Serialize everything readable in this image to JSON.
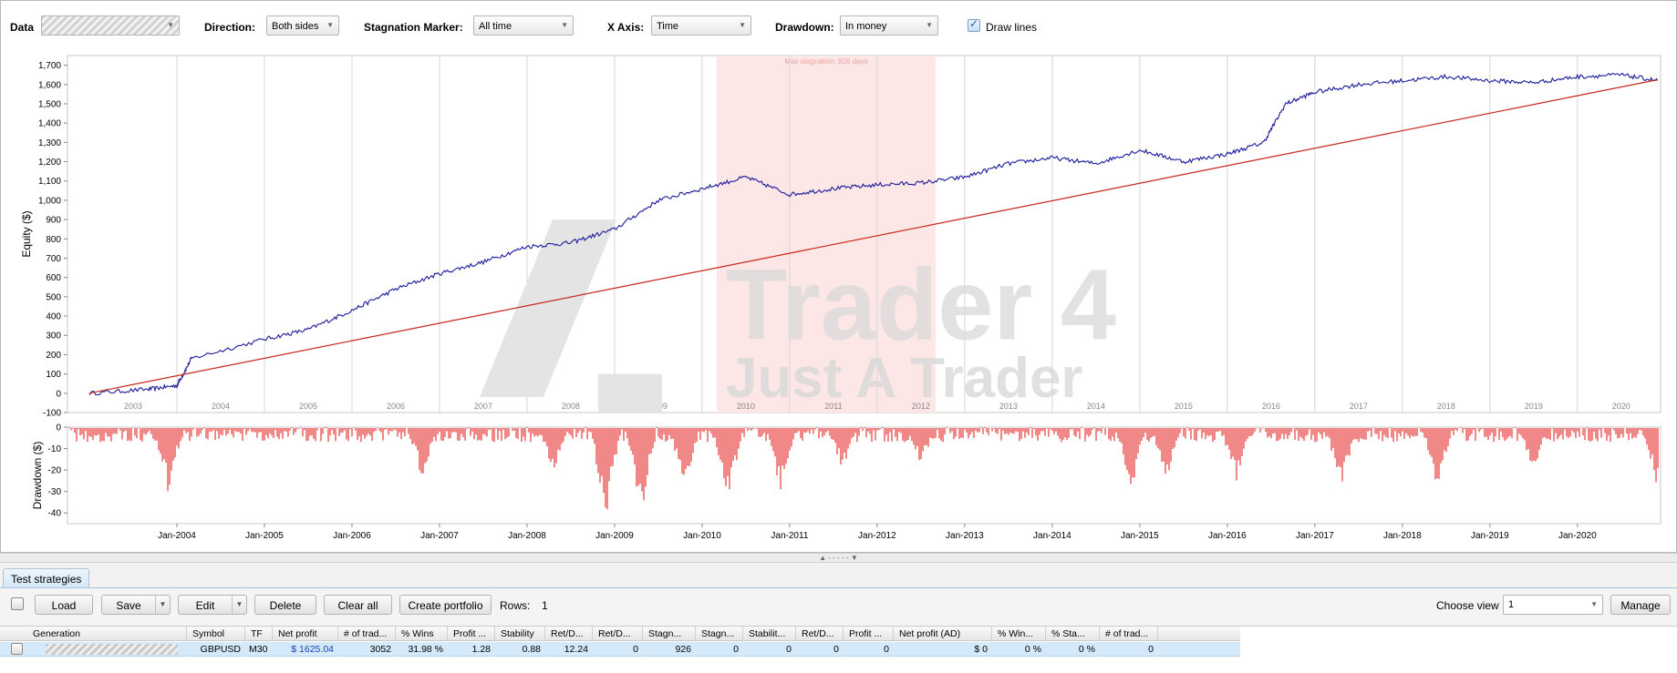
{
  "toolbar": {
    "data_label": "Data",
    "direction_label": "Direction:",
    "direction_value": "Both sides",
    "stagnation_label": "Stagnation Marker:",
    "stagnation_value": "All time",
    "xaxis_label": "X Axis:",
    "xaxis_value": "Time",
    "drawdown_label": "Drawdown:",
    "drawdown_value": "In money",
    "draw_lines_label": "Draw lines",
    "draw_lines_checked": true
  },
  "equity_chart": {
    "ylabel": "Equity ($)",
    "y_ticks": [
      "1,700",
      "1,600",
      "1,500",
      "1,400",
      "1,300",
      "1,200",
      "1,100",
      "1,000",
      "900",
      "800",
      "700",
      "600",
      "500",
      "400",
      "300",
      "200",
      "100",
      "0",
      "-100"
    ],
    "year_labels": [
      "2003",
      "2004",
      "2005",
      "2006",
      "2007",
      "2008",
      "2009",
      "2010",
      "2011",
      "2012",
      "2013",
      "2014",
      "2015",
      "2016",
      "2017",
      "2018",
      "2019",
      "2020"
    ],
    "stagnation_text": "Max stagnation: 926 days",
    "watermark_line1": "Trader 4",
    "watermark_line2": "Just A Trader"
  },
  "drawdown_chart": {
    "ylabel": "Drawdown ($)",
    "y_ticks": [
      "0",
      "-10",
      "-20",
      "-30",
      "-40"
    ],
    "x_ticks": [
      "Jan-2004",
      "Jan-2005",
      "Jan-2006",
      "Jan-2007",
      "Jan-2008",
      "Jan-2009",
      "Jan-2010",
      "Jan-2011",
      "Jan-2012",
      "Jan-2013",
      "Jan-2014",
      "Jan-2015",
      "Jan-2016",
      "Jan-2017",
      "Jan-2018",
      "Jan-2019",
      "Jan-2020"
    ]
  },
  "chart_data": [
    {
      "type": "line",
      "ylabel": "Equity ($)",
      "ylim": [
        -100,
        1750
      ],
      "series": [
        {
          "x": [
            "2003-01",
            "2003-09",
            "2004-01",
            "2004-03",
            "2005-01",
            "2005-07",
            "2006-01",
            "2006-07",
            "2007-01",
            "2007-07",
            "2008-01",
            "2008-07",
            "2009-01",
            "2009-07",
            "2010-01",
            "2010-07",
            "2011-01",
            "2011-07",
            "2012-01",
            "2012-07",
            "2013-01",
            "2013-07",
            "2014-01",
            "2014-07",
            "2015-01",
            "2015-07",
            "2016-01",
            "2016-06",
            "2016-09",
            "2017-01",
            "2017-07",
            "2018-01",
            "2018-07",
            "2019-01",
            "2019-07",
            "2020-01",
            "2020-07",
            "2020-12"
          ],
          "y": [
            0,
            20,
            40,
            180,
            280,
            330,
            430,
            540,
            620,
            680,
            760,
            780,
            850,
            1000,
            1060,
            1120,
            1030,
            1060,
            1080,
            1090,
            1120,
            1190,
            1220,
            1190,
            1260,
            1200,
            1240,
            1300,
            1500,
            1560,
            1600,
            1620,
            1640,
            1620,
            1610,
            1640,
            1650,
            1620
          ]
        },
        {
          "x": [
            "2003-01",
            "2020-12"
          ],
          "y": [
            0,
            1625
          ]
        }
      ],
      "stagnation_period": [
        "2010-03",
        "2012-09"
      ]
    },
    {
      "type": "bar",
      "ylabel": "Drawdown ($)",
      "ylim": [
        -45,
        0
      ]
    }
  ],
  "tabs": [
    "Test strategies"
  ],
  "actions": {
    "load": "Load",
    "save": "Save",
    "edit": "Edit",
    "delete": "Delete",
    "clear_all": "Clear all",
    "create_portfolio": "Create portfolio",
    "rows_label": "Rows:",
    "rows_value": "1",
    "choose_view_label": "Choose view",
    "view_value": "1",
    "manage": "Manage"
  },
  "table": {
    "headers": [
      "Generation",
      "Symbol",
      "TF",
      "Net profit",
      "# of trad...",
      "% Wins",
      "Profit ...",
      "Stability",
      "Ret/D...",
      "Ret/D...",
      "Stagn...",
      "Stagn...",
      "Stabilit...",
      "Ret/D...",
      "Profit ...",
      "Net profit (AD)",
      "% Win...",
      "% Sta...",
      "# of trad..."
    ],
    "rows": [
      [
        "",
        "GBPUSD",
        "M30",
        "$ 1625.04",
        "3052",
        "31.98 %",
        "1.28",
        "0.88",
        "12.24",
        "0",
        "926",
        "0",
        "0",
        "0",
        "0",
        "$ 0",
        "0 %",
        "0 %",
        "0"
      ]
    ]
  },
  "splitter_text": "▲ - - - - - ▼"
}
